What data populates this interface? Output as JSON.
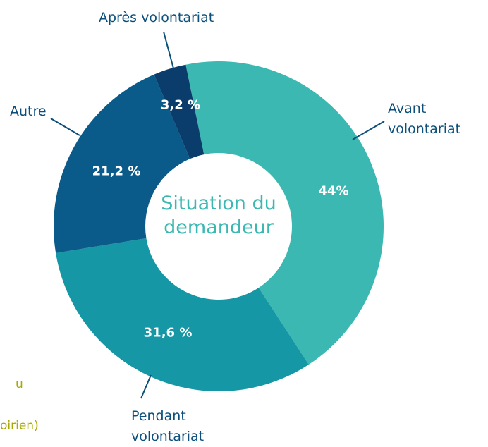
{
  "chart_data": {
    "type": "donut",
    "center_label": "Situation du demandeur",
    "categories": [
      "Avant volontariat",
      "Pendant volontariat",
      "Autre",
      "Après volontariat"
    ],
    "values": [
      44,
      31.6,
      21.2,
      3.2
    ],
    "value_labels": [
      "44%",
      "31,6 %",
      "21,2 %",
      "3,2 %"
    ],
    "colors": [
      "#3cb8b2",
      "#1597a5",
      "#0b5b8a",
      "#0a3d6b"
    ],
    "legend_fragments": [
      "u",
      "oirien)"
    ]
  }
}
